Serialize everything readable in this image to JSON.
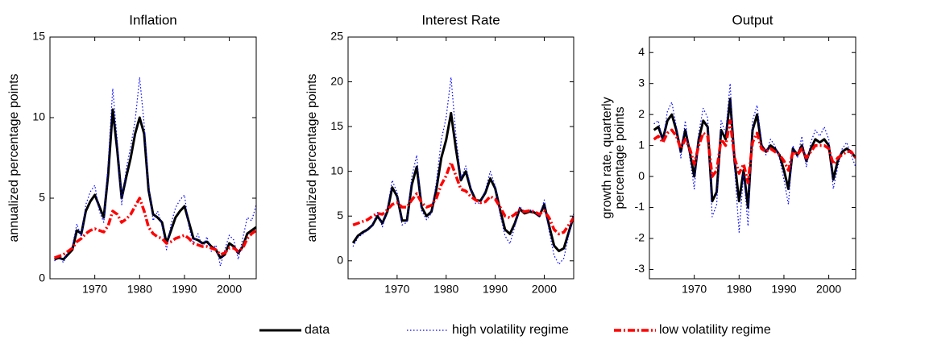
{
  "chart_data": [
    {
      "type": "line",
      "title": "Inflation",
      "ylabel": [
        "annualized percentage points"
      ],
      "x": [
        1961,
        1962,
        1963,
        1964,
        1965,
        1966,
        1967,
        1968,
        1969,
        1970,
        1971,
        1972,
        1973,
        1974,
        1975,
        1976,
        1977,
        1978,
        1979,
        1980,
        1981,
        1982,
        1983,
        1984,
        1985,
        1986,
        1987,
        1988,
        1989,
        1990,
        1991,
        1992,
        1993,
        1994,
        1995,
        1996,
        1997,
        1998,
        1999,
        2000,
        2001,
        2002,
        2003,
        2004,
        2005,
        2006
      ],
      "xlim": [
        1960,
        2006
      ],
      "xticks": [
        1970,
        1980,
        1990,
        2000
      ],
      "ylim": [
        0,
        15
      ],
      "yticks": [
        0,
        5,
        10,
        15
      ],
      "series": [
        {
          "name": "data",
          "color": "#000000",
          "line_style": "solid",
          "values": [
            1.2,
            1.3,
            1.2,
            1.5,
            1.8,
            3.0,
            2.8,
            4.2,
            4.8,
            5.2,
            4.5,
            3.8,
            6.5,
            10.5,
            8.0,
            5.0,
            6.3,
            7.5,
            9.0,
            10.0,
            9.0,
            5.5,
            4.0,
            3.8,
            3.5,
            2.2,
            3.0,
            3.8,
            4.2,
            4.5,
            3.5,
            2.5,
            2.4,
            2.2,
            2.3,
            2.0,
            1.8,
            1.3,
            1.5,
            2.2,
            2.0,
            1.6,
            2.0,
            2.8,
            3.0,
            3.2
          ]
        },
        {
          "name": "high volatility regime",
          "color": "#0000ff",
          "line_style": "dotted",
          "values": [
            1.1,
            1.4,
            1.0,
            1.7,
            2.0,
            3.4,
            2.6,
            4.6,
            5.4,
            5.8,
            4.2,
            3.5,
            7.2,
            11.8,
            8.6,
            4.6,
            6.8,
            8.2,
            9.8,
            12.5,
            9.6,
            5.8,
            3.6,
            4.2,
            3.3,
            1.8,
            3.4,
            4.4,
            4.9,
            5.2,
            3.2,
            2.2,
            2.8,
            1.9,
            2.6,
            1.7,
            2.1,
            0.8,
            1.8,
            2.7,
            2.4,
            1.2,
            2.5,
            3.8,
            3.6,
            4.6
          ]
        },
        {
          "name": "low volatility regime",
          "color": "#ff0000",
          "line_style": "dashdot",
          "values": [
            1.3,
            1.4,
            1.5,
            1.7,
            1.9,
            2.3,
            2.5,
            2.8,
            3.0,
            3.1,
            3.0,
            2.9,
            3.3,
            4.2,
            4.0,
            3.5,
            3.7,
            4.0,
            4.5,
            5.0,
            4.2,
            3.2,
            2.8,
            2.6,
            2.5,
            2.2,
            2.3,
            2.5,
            2.6,
            2.7,
            2.5,
            2.2,
            2.1,
            2.0,
            2.0,
            1.9,
            1.8,
            1.5,
            1.6,
            1.9,
            1.9,
            1.7,
            1.9,
            2.5,
            2.8,
            3.0
          ]
        }
      ]
    },
    {
      "type": "line",
      "title": "Interest Rate",
      "ylabel": [
        "annualized percentage points"
      ],
      "x": [
        1961,
        1962,
        1963,
        1964,
        1965,
        1966,
        1967,
        1968,
        1969,
        1970,
        1971,
        1972,
        1973,
        1974,
        1975,
        1976,
        1977,
        1978,
        1979,
        1980,
        1981,
        1982,
        1983,
        1984,
        1985,
        1986,
        1987,
        1988,
        1989,
        1990,
        1991,
        1992,
        1993,
        1994,
        1995,
        1996,
        1997,
        1998,
        1999,
        2000,
        2001,
        2002,
        2003,
        2004,
        2005,
        2006
      ],
      "xlim": [
        1960,
        2006
      ],
      "xticks": [
        1970,
        1980,
        1990,
        2000
      ],
      "ylim": [
        -2,
        25
      ],
      "yticks": [
        0,
        5,
        10,
        15,
        20,
        25
      ],
      "series": [
        {
          "name": "data",
          "color": "#000000",
          "line_style": "solid",
          "values": [
            2.0,
            2.8,
            3.2,
            3.5,
            4.0,
            5.0,
            4.2,
            5.5,
            8.2,
            7.2,
            4.5,
            4.5,
            8.5,
            10.5,
            6.0,
            5.0,
            5.5,
            8.0,
            11.5,
            13.5,
            16.5,
            12.5,
            9.0,
            10.0,
            8.0,
            6.8,
            6.7,
            7.6,
            9.2,
            8.1,
            5.7,
            3.5,
            3.0,
            4.2,
            5.8,
            5.3,
            5.5,
            5.4,
            5.0,
            6.3,
            3.9,
            1.7,
            1.1,
            1.4,
            3.2,
            5.0
          ]
        },
        {
          "name": "high volatility regime",
          "color": "#0000ff",
          "line_style": "dotted",
          "values": [
            1.6,
            2.6,
            3.0,
            3.4,
            4.1,
            5.4,
            3.8,
            5.8,
            9.0,
            7.6,
            4.0,
            4.3,
            9.4,
            11.8,
            5.6,
            4.6,
            5.3,
            8.8,
            13.5,
            16.0,
            20.5,
            14.0,
            9.2,
            10.6,
            8.2,
            6.4,
            6.5,
            7.9,
            10.0,
            8.4,
            5.2,
            2.8,
            1.9,
            3.9,
            6.1,
            5.4,
            5.7,
            5.5,
            4.9,
            6.8,
            3.3,
            0.6,
            -0.4,
            0.3,
            2.9,
            5.3
          ]
        },
        {
          "name": "low volatility regime",
          "color": "#ff0000",
          "line_style": "dashdot",
          "values": [
            4.0,
            4.2,
            4.4,
            4.6,
            5.0,
            5.3,
            5.2,
            5.7,
            6.3,
            6.5,
            6.0,
            6.0,
            6.8,
            7.5,
            6.5,
            6.0,
            6.2,
            7.0,
            8.5,
            9.5,
            11.0,
            9.5,
            8.0,
            7.8,
            7.2,
            6.8,
            6.5,
            6.6,
            7.2,
            6.9,
            6.0,
            5.0,
            4.8,
            5.2,
            5.7,
            5.5,
            5.6,
            5.5,
            5.2,
            5.6,
            4.8,
            3.5,
            3.0,
            3.2,
            4.0,
            4.8
          ]
        }
      ]
    },
    {
      "type": "line",
      "title": "Output",
      "ylabel": [
        "growth rate, quarterly",
        "percentage points"
      ],
      "x": [
        1961,
        1962,
        1963,
        1964,
        1965,
        1966,
        1967,
        1968,
        1969,
        1970,
        1971,
        1972,
        1973,
        1974,
        1975,
        1976,
        1977,
        1978,
        1979,
        1980,
        1981,
        1982,
        1983,
        1984,
        1985,
        1986,
        1987,
        1988,
        1989,
        1990,
        1991,
        1992,
        1993,
        1994,
        1995,
        1996,
        1997,
        1998,
        1999,
        2000,
        2001,
        2002,
        2003,
        2004,
        2005,
        2006
      ],
      "xlim": [
        1960,
        2006
      ],
      "xticks": [
        1970,
        1980,
        1990,
        2000
      ],
      "ylim": [
        -3.3,
        4.5
      ],
      "yticks": [
        -3,
        -2,
        -1,
        0,
        1,
        2,
        3,
        4
      ],
      "series": [
        {
          "name": "data",
          "color": "#000000",
          "line_style": "solid",
          "values": [
            1.5,
            1.6,
            1.2,
            1.8,
            2.0,
            1.5,
            0.8,
            1.5,
            0.8,
            0.0,
            1.2,
            1.8,
            1.6,
            -0.8,
            -0.5,
            1.5,
            1.2,
            2.5,
            0.5,
            -0.8,
            0.2,
            -1.0,
            1.5,
            2.0,
            1.0,
            0.8,
            1.0,
            0.9,
            0.7,
            0.2,
            -0.4,
            0.9,
            0.7,
            1.0,
            0.5,
            0.9,
            1.2,
            1.1,
            1.2,
            1.0,
            -0.1,
            0.5,
            0.8,
            0.9,
            0.8,
            0.6
          ]
        },
        {
          "name": "high volatility regime",
          "color": "#0000ff",
          "line_style": "dotted",
          "values": [
            1.7,
            1.8,
            1.1,
            2.1,
            2.4,
            1.6,
            0.6,
            1.8,
            0.6,
            -0.4,
            1.4,
            2.2,
            1.9,
            -1.3,
            -0.9,
            1.8,
            1.4,
            3.0,
            0.3,
            -1.8,
            0.1,
            -1.6,
            1.8,
            2.3,
            1.1,
            0.7,
            1.2,
            1.0,
            0.6,
            -0.1,
            -0.9,
            1.0,
            0.6,
            1.3,
            0.3,
            1.1,
            1.5,
            1.3,
            1.6,
            1.2,
            -0.4,
            0.3,
            0.9,
            1.1,
            0.7,
            0.3
          ]
        },
        {
          "name": "low volatility regime",
          "color": "#ff0000",
          "line_style": "dashdot",
          "values": [
            1.2,
            1.3,
            1.1,
            1.4,
            1.5,
            1.3,
            0.9,
            1.2,
            0.9,
            0.4,
            1.0,
            1.4,
            1.3,
            0.0,
            0.2,
            1.2,
            1.0,
            1.8,
            0.6,
            0.1,
            0.4,
            -0.2,
            1.1,
            1.4,
            0.9,
            0.8,
            0.9,
            0.8,
            0.7,
            0.5,
            0.2,
            0.8,
            0.7,
            0.9,
            0.6,
            0.8,
            1.0,
            1.0,
            1.0,
            0.9,
            0.4,
            0.6,
            0.7,
            0.8,
            0.8,
            0.6
          ]
        }
      ]
    }
  ]
}
